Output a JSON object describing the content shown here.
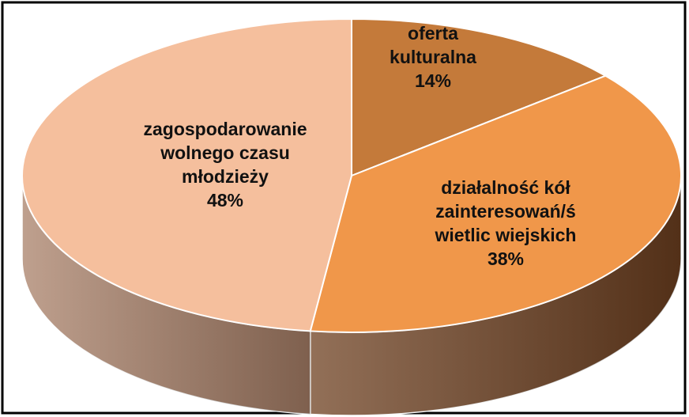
{
  "chart_data": {
    "type": "pie3d",
    "categories": [
      "oferta\nkulturalna",
      "działalność kół\nzainteresowań/ś\nwietlic wiejskich",
      "zagospodarowanie\nwolnego czasu\nmłodzieży"
    ],
    "values": [
      14,
      38,
      48
    ],
    "value_labels": [
      "14%",
      "38%",
      "48%"
    ],
    "colors": [
      "#c47a3a",
      "#f0974a",
      "#f5bf9d"
    ],
    "side_colors": [
      "#7a4820",
      "#6e4020",
      "#a98068"
    ]
  }
}
